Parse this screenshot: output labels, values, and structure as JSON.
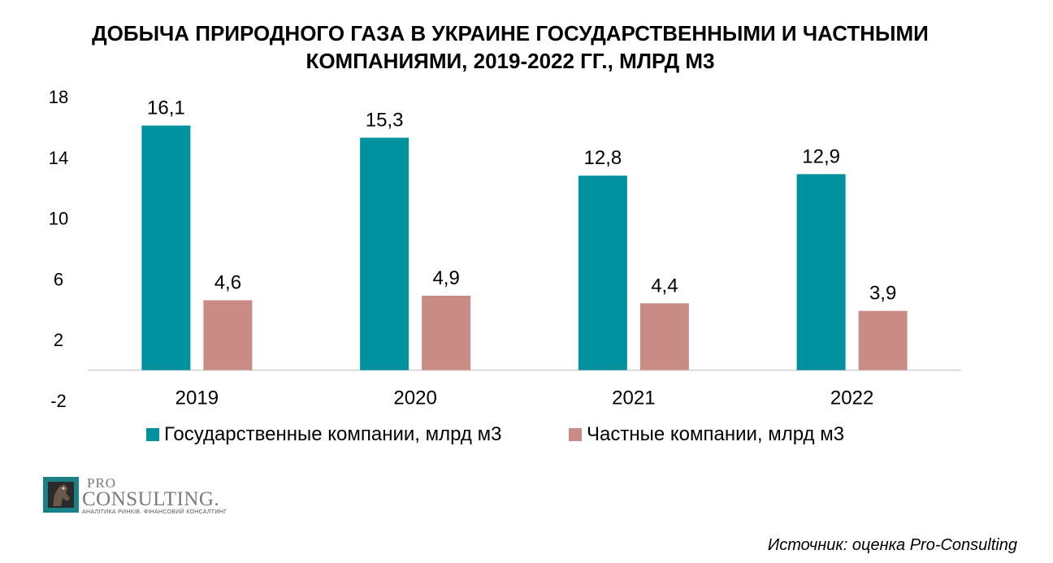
{
  "title_lines": [
    "ДОБЫЧА ПРИРОДНОГО ГАЗА В УКРАИНЕ ГОСУДАРСТВЕННЫМИ И ЧАСТНЫМИ",
    "КОМПАНИЯМИ, 2019-2022 ГГ., МЛРД М3"
  ],
  "chart_data": {
    "type": "bar",
    "title": "ДОБЫЧА ПРИРОДНОГО ГАЗА В УКРАИНЕ ГОСУДАРСТВЕННЫМИ И ЧАСТНЫМИ КОМПАНИЯМИ, 2019-2022 ГГ., МЛРД М3",
    "categories": [
      "2019",
      "2020",
      "2021",
      "2022"
    ],
    "series": [
      {
        "name": "Государственные компании, млрд м3",
        "color": "#00919e",
        "values": [
          16.1,
          15.3,
          12.8,
          12.9
        ],
        "labels": [
          "16,1",
          "15,3",
          "12,8",
          "12,9"
        ]
      },
      {
        "name": "Частные компании, млрд м3",
        "color": "#c98c85",
        "values": [
          4.6,
          4.9,
          4.4,
          3.9
        ],
        "labels": [
          "4,6",
          "4,9",
          "4,4",
          "3,9"
        ]
      }
    ],
    "ylim": [
      -2,
      18
    ],
    "yticks": [
      -2,
      2,
      6,
      10,
      14,
      18
    ],
    "ytick_labels": [
      "-2",
      "2",
      "6",
      "10",
      "14",
      "18"
    ],
    "grid": false,
    "legend_position": "bottom"
  },
  "logo": {
    "pro": "PRO",
    "consulting": "CONSULTING.",
    "tagline": "АНАЛІТИКА РИНКІВ. ФІНАНСОВИЙ КОНСАЛТИНГ"
  },
  "source": "Источник: оценка Pro-Consulting"
}
